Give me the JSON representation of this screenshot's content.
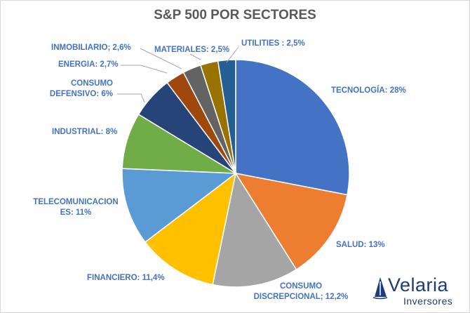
{
  "chart_data": {
    "type": "pie",
    "title": "S&P 500 POR SECTORES",
    "slices": [
      {
        "label": "TECNOLOGÍA",
        "value": 28,
        "label_text": "TECNOLOGÍA: 28%",
        "color": "#4472c4"
      },
      {
        "label": "SALUD",
        "value": 13,
        "label_text": "SALUD: 13%",
        "color": "#ed7d31"
      },
      {
        "label": "CONSUMO DISCREPCIONAL",
        "value": 12.2,
        "label_text": [
          "CONSUMO",
          "DISCREPCIONAL; 12,2%"
        ],
        "color": "#a5a5a5"
      },
      {
        "label": "FINANCIERO",
        "value": 11.4,
        "label_text": "FINANCIERO: 11,4%",
        "color": "#ffc000"
      },
      {
        "label": "TELECOMUNICACIONES",
        "value": 11,
        "label_text": [
          "TELECOMUNICACION",
          "ES: 11%"
        ],
        "color": "#5b9bd5"
      },
      {
        "label": "INDUSTRIAL",
        "value": 8,
        "label_text": "INDUSTRIAL: 8%",
        "color": "#70ad47"
      },
      {
        "label": "CONSUMO DEFENSIVO",
        "value": 6,
        "label_text": [
          "CONSUMO",
          "DEFENSIVO: 6%"
        ],
        "color": "#264478"
      },
      {
        "label": "ENERGIA",
        "value": 2.7,
        "label_text": "ENERGIA: 2,7%",
        "color": "#9e480e"
      },
      {
        "label": "INMOBILIARIO",
        "value": 2.6,
        "label_text": "INMOBILIARIO; 2,6%",
        "color": "#636363"
      },
      {
        "label": "MATERIALES",
        "value": 2.5,
        "label_text": "MATERIALES: 2,5%",
        "color": "#997300"
      },
      {
        "label": "UTILITIES",
        "value": 2.5,
        "label_text": "UTILITIES  : 2,5%",
        "color": "#255e91"
      }
    ],
    "legend": "none"
  },
  "logo": {
    "name": "Velaria",
    "sub": "Inversores"
  }
}
